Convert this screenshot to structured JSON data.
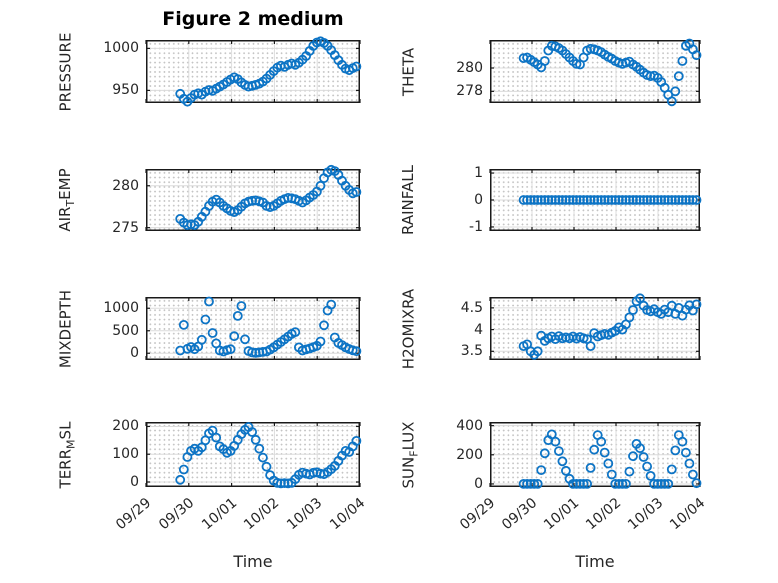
{
  "title": "Figure 2 medium",
  "axes": {
    "xlabel": "Time",
    "x_tick_labels": [
      "09/29",
      "09/30",
      "10/01",
      "10/02",
      "10/03",
      "10/04"
    ]
  },
  "style": {
    "marker_color": "#0d74c5",
    "axis_color": "#1a1a1a",
    "tick_label_color": "#262626",
    "major_grid_color": "#dcdcdc",
    "minor_grid_dot_color": "#c4c4c4",
    "background": "#ffffff"
  },
  "chart_data": {
    "type": "scatter",
    "marker": "open-circle",
    "xlabel": "Time",
    "x_axis_range_days": [
      0,
      5
    ],
    "x_tick_labels": [
      "09/29",
      "09/30",
      "10/01",
      "10/02",
      "10/03",
      "10/04"
    ],
    "x_days_from_0929": [
      0.8,
      0.884,
      0.968,
      1.052,
      1.136,
      1.22,
      1.304,
      1.388,
      1.472,
      1.556,
      1.64,
      1.724,
      1.808,
      1.892,
      1.976,
      2.06,
      2.144,
      2.228,
      2.312,
      2.396,
      2.48,
      2.564,
      2.648,
      2.732,
      2.816,
      2.9,
      2.984,
      3.068,
      3.152,
      3.236,
      3.32,
      3.404,
      3.488,
      3.572,
      3.656,
      3.74,
      3.824,
      3.908,
      3.992,
      4.076,
      4.16,
      4.244,
      4.328,
      4.412,
      4.496,
      4.58,
      4.664,
      4.748,
      4.832,
      4.916
    ],
    "subplots": [
      {
        "name": "PRESSURE",
        "label_parts": [
          {
            "t": "PRESSURE"
          }
        ],
        "ylim": [
          935,
          1010
        ],
        "yticks": [
          950,
          1000
        ],
        "ytick_labels": [
          "950",
          "1000"
        ],
        "values": [
          946,
          940,
          936.5,
          941,
          945,
          946.5,
          945,
          948.5,
          950.5,
          949.5,
          952,
          954.5,
          957,
          960,
          963,
          965.5,
          963.5,
          959.5,
          956.5,
          954.5,
          955.5,
          956.5,
          958,
          960.5,
          964,
          968.5,
          973,
          977,
          979.5,
          978,
          980.5,
          982,
          980.5,
          983,
          986.5,
          991,
          997,
          1003,
          1007,
          1008.5,
          1006.5,
          1003,
          998,
          992,
          986,
          980.5,
          976,
          974,
          976.5,
          978.5
        ]
      },
      {
        "name": "THETA",
        "label_parts": [
          {
            "t": "THETA"
          }
        ],
        "ylim": [
          277,
          282.4
        ],
        "yticks": [
          278,
          280
        ],
        "ytick_labels": [
          "278",
          "280"
        ],
        "values": [
          280.85,
          280.9,
          280.7,
          280.5,
          280.3,
          280.05,
          280.6,
          281.5,
          281.9,
          281.85,
          281.7,
          281.5,
          281.2,
          280.9,
          280.6,
          280.35,
          280.3,
          280.9,
          281.5,
          281.65,
          281.6,
          281.5,
          281.35,
          281.15,
          280.95,
          280.8,
          280.6,
          280.45,
          280.35,
          280.45,
          280.55,
          280.3,
          280.1,
          279.85,
          279.6,
          279.4,
          279.3,
          279.35,
          279.15,
          278.8,
          278.3,
          277.7,
          277.15,
          278,
          279.3,
          280.6,
          281.9,
          282.1,
          281.6,
          281.1
        ]
      },
      {
        "name": "AIR_TEMP",
        "label_parts": [
          {
            "t": "AIR"
          },
          {
            "t": "T",
            "sub": true
          },
          {
            "t": "EMP"
          }
        ],
        "ylim": [
          274.6,
          282
        ],
        "yticks": [
          275,
          280
        ],
        "ytick_labels": [
          "275",
          "280"
        ],
        "values": [
          276.05,
          275.6,
          275.3,
          275.4,
          275.3,
          275.7,
          276.3,
          276.9,
          277.6,
          278.1,
          278.35,
          278,
          277.6,
          277.3,
          277,
          276.85,
          277.1,
          277.5,
          277.9,
          278.1,
          278.2,
          278.25,
          278.15,
          278,
          277.6,
          277.45,
          277.6,
          277.9,
          278.2,
          278.4,
          278.55,
          278.5,
          278.4,
          278.2,
          278,
          278.25,
          278.6,
          278.9,
          279.3,
          280,
          280.9,
          281.6,
          281.9,
          281.75,
          281.3,
          280.6,
          280,
          279.5,
          279.1,
          279.25
        ]
      },
      {
        "name": "RAINFALL",
        "label_parts": [
          {
            "t": "RAINFALL"
          }
        ],
        "ylim": [
          -1.15,
          1.15
        ],
        "yticks": [
          -1,
          0,
          1
        ],
        "ytick_labels": [
          "-1",
          "0",
          "1"
        ],
        "values": [
          0,
          0,
          0,
          0,
          0,
          0,
          0,
          0,
          0,
          0,
          0,
          0,
          0,
          0,
          0,
          0,
          0,
          0,
          0,
          0,
          0,
          0,
          0,
          0,
          0,
          0,
          0,
          0,
          0,
          0,
          0,
          0,
          0,
          0,
          0,
          0,
          0,
          0,
          0,
          0,
          0,
          0,
          0,
          0,
          0,
          0,
          0,
          0,
          0,
          0
        ]
      },
      {
        "name": "MIXDEPTH",
        "label_parts": [
          {
            "t": "MIXDEPTH"
          }
        ],
        "ylim": [
          -150,
          1250
        ],
        "yticks": [
          0,
          500,
          1000
        ],
        "ytick_labels": [
          "0",
          "500",
          "1000"
        ],
        "values": [
          60,
          630,
          100,
          140,
          90,
          150,
          300,
          750,
          1150,
          450,
          220,
          60,
          40,
          70,
          90,
          380,
          830,
          1050,
          310,
          50,
          20,
          10,
          20,
          30,
          40,
          80,
          130,
          190,
          250,
          310,
          370,
          430,
          470,
          130,
          60,
          85,
          105,
          135,
          165,
          260,
          620,
          950,
          1080,
          350,
          230,
          180,
          130,
          95,
          65,
          45
        ]
      },
      {
        "name": "H2OMIXRA",
        "label_parts": [
          {
            "t": "H2OMIXRA"
          }
        ],
        "ylim": [
          3.3,
          4.75
        ],
        "yticks": [
          3.5,
          4,
          4.5
        ],
        "ytick_labels": [
          "3.5",
          "4",
          "4.5"
        ],
        "values": [
          3.62,
          3.66,
          3.5,
          3.42,
          3.5,
          3.86,
          3.74,
          3.8,
          3.84,
          3.78,
          3.85,
          3.8,
          3.82,
          3.8,
          3.84,
          3.79,
          3.83,
          3.8,
          3.78,
          3.62,
          3.92,
          3.84,
          3.87,
          3.9,
          3.88,
          3.93,
          3.97,
          4.05,
          4,
          4.12,
          4.28,
          4.45,
          4.65,
          4.72,
          4.55,
          4.45,
          4.42,
          4.47,
          4.4,
          4.36,
          4.46,
          4.4,
          4.55,
          4.36,
          4.5,
          4.32,
          4.46,
          4.56,
          4.44,
          4.58
        ]
      },
      {
        "name": "TERR_MSL",
        "label_parts": [
          {
            "t": "TERR"
          },
          {
            "t": "M",
            "sub": true
          },
          {
            "t": "SL"
          }
        ],
        "ylim": [
          -18,
          216
        ],
        "yticks": [
          0,
          100,
          200
        ],
        "ytick_labels": [
          "0",
          "100",
          "200"
        ],
        "values": [
          8,
          45,
          90,
          112,
          120,
          112,
          125,
          150,
          175,
          185,
          160,
          128,
          118,
          105,
          112,
          130,
          152,
          172,
          188,
          198,
          180,
          152,
          120,
          88,
          55,
          25,
          5,
          -3,
          -5,
          -4,
          -5,
          -3,
          10,
          26,
          34,
          30,
          27,
          33,
          35,
          30,
          28,
          36,
          46,
          58,
          76,
          95,
          112,
          108,
          128,
          148
        ]
      },
      {
        "name": "SUN_FLUX",
        "label_parts": [
          {
            "t": "SUN"
          },
          {
            "t": "F",
            "sub": true
          },
          {
            "t": "LUX"
          }
        ],
        "ylim": [
          -21,
          425
        ],
        "yticks": [
          0,
          200,
          400
        ],
        "ytick_labels": [
          "0",
          "200",
          "400"
        ],
        "values": [
          0,
          0,
          0,
          0,
          0,
          95,
          210,
          300,
          340,
          290,
          225,
          155,
          90,
          35,
          0,
          0,
          0,
          0,
          0,
          110,
          235,
          335,
          290,
          215,
          140,
          65,
          0,
          0,
          0,
          0,
          85,
          190,
          275,
          245,
          185,
          120,
          55,
          0,
          0,
          0,
          0,
          0,
          100,
          230,
          335,
          290,
          215,
          140,
          65,
          5
        ]
      }
    ]
  }
}
